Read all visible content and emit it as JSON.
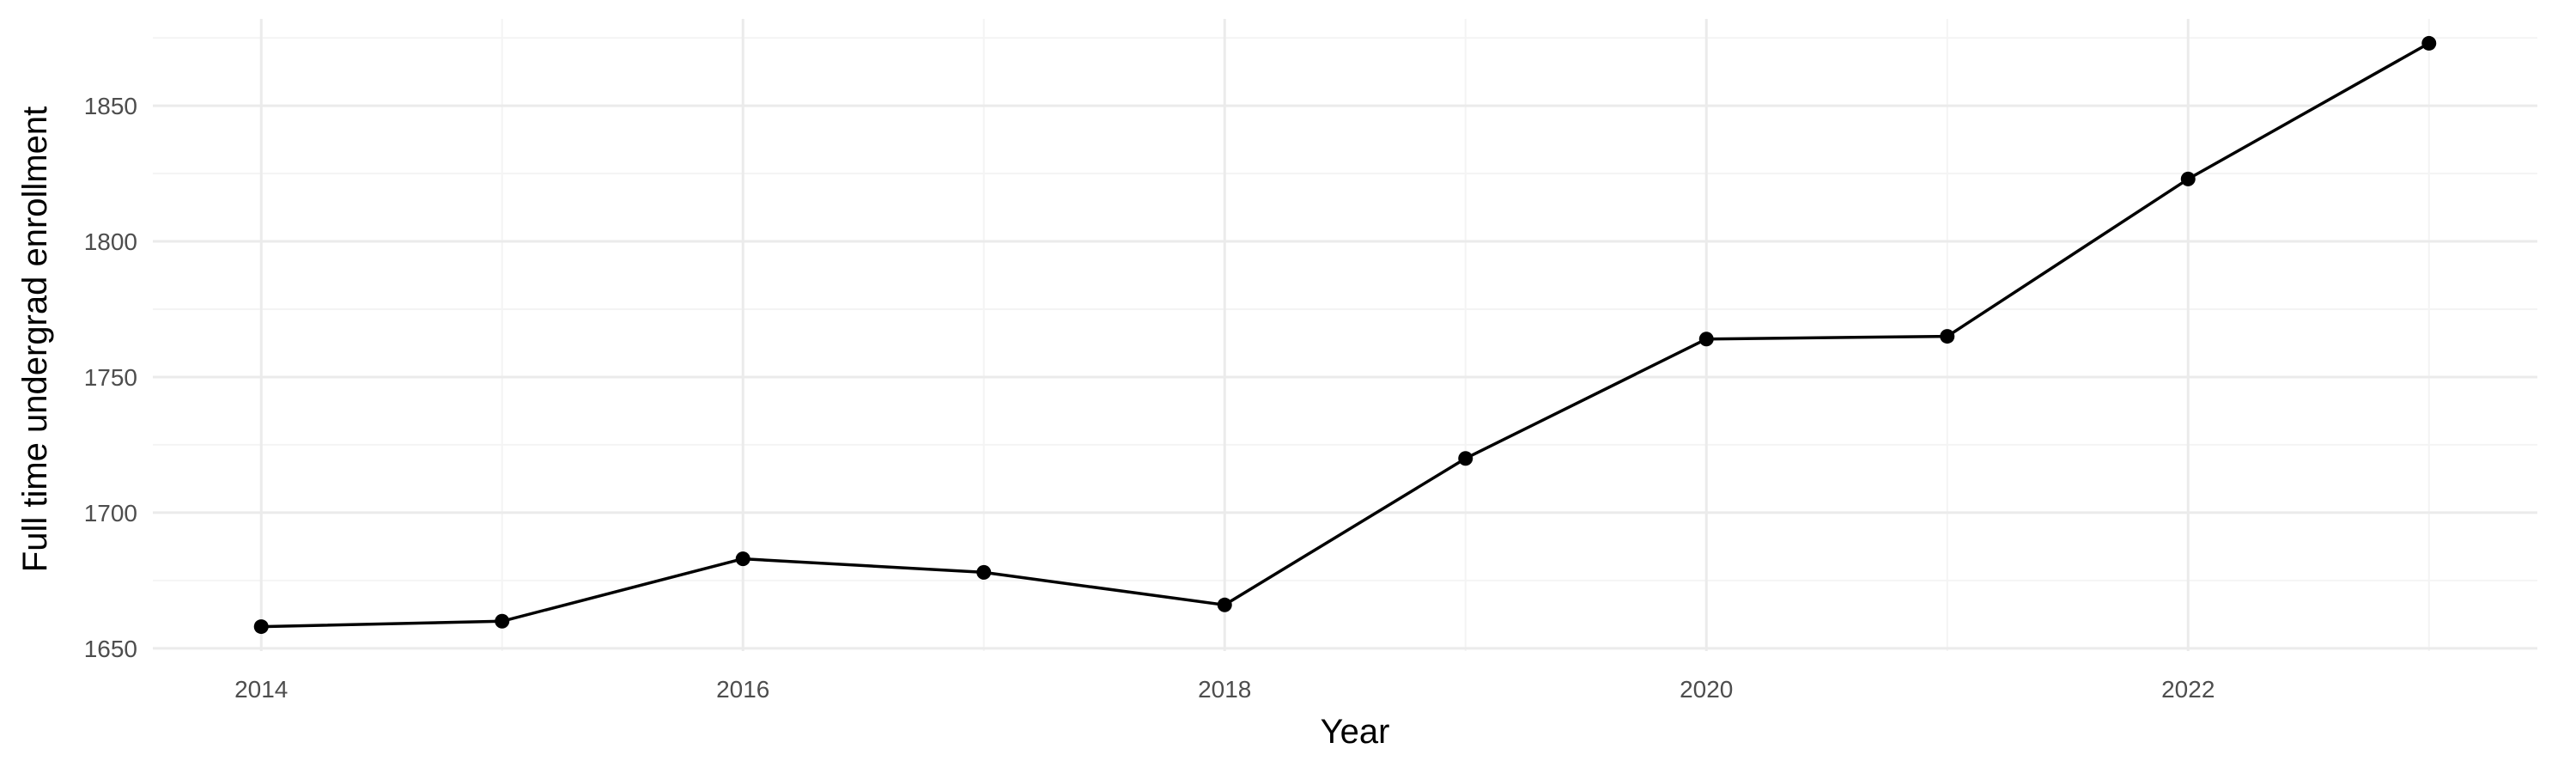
{
  "chart_data": {
    "type": "line",
    "title": "",
    "xlabel": "Year",
    "ylabel": "Full time undergrad enrollment",
    "x": [
      2014,
      2015,
      2016,
      2017,
      2018,
      2019,
      2020,
      2021,
      2022,
      2023
    ],
    "series": [
      {
        "values": [
          1658,
          1660,
          1683,
          1678,
          1666,
          1720,
          1764,
          1765,
          1823,
          1873
        ]
      }
    ],
    "xlim": [
      2013.55,
      2023.45
    ],
    "ylim": [
      1649,
      1882
    ],
    "x_ticks": [
      2014,
      2016,
      2018,
      2020,
      2022
    ],
    "x_tick_labels": [
      "2014",
      "2016",
      "2018",
      "2020",
      "2022"
    ],
    "y_ticks": [
      1650,
      1700,
      1750,
      1800,
      1850
    ],
    "y_tick_labels": [
      "1650",
      "1700",
      "1750",
      "1800",
      "1850"
    ],
    "grid": true,
    "line_color": "#000000",
    "grid_major_color": "#ebebeb",
    "grid_minor_color": "#f4f4f4"
  }
}
